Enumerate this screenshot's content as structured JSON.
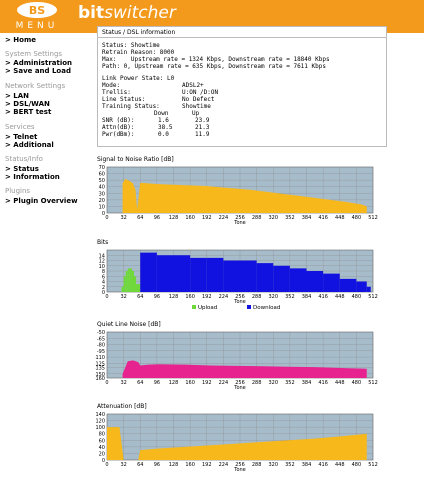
{
  "header": {
    "logo_top": "BS",
    "logo_bottom": "MENU",
    "brand_bold": "bit",
    "brand_italic": "switcher"
  },
  "sidebar": {
    "home": "> Home",
    "system_settings": {
      "heading": "System Settings",
      "items": [
        "> Administration",
        "> Save and Load"
      ]
    },
    "network_settings": {
      "heading": "Network Settings",
      "items": [
        "> LAN",
        "> DSL/WAN",
        "> BERT test"
      ]
    },
    "services": {
      "heading": "Services",
      "items": [
        "> Telnet",
        "> Additional"
      ]
    },
    "status_info": {
      "heading": "Status/Info",
      "items": [
        "> Status",
        "> Information"
      ]
    },
    "plugins": {
      "heading": "Plugins",
      "items": [
        "> Plugin Overview"
      ]
    }
  },
  "dsl": {
    "title": "Status / DSL information",
    "status_line": "Status: Showtime",
    "retrain_line": "Retrain Reason: 8000",
    "max_line": "Max:    Upstream rate = 1324 Kbps, Downstream rate = 18840 Kbps",
    "path_line": "Path: 0, Upstream rate = 635 Kbps, Downstream rate = 7611 Kbps",
    "link_power": "Link Power State: L0",
    "mode_label": "Mode:",
    "mode_value": "ADSL2+",
    "trellis_label": "Trellis:",
    "trellis_value": "U:ON /D:ON",
    "line_status_label": "Line Status:",
    "line_status_value": "No Defect",
    "training_label": "Training Status:",
    "training_value": "Showtime",
    "col_down": "Down",
    "col_up": "Up",
    "snr_label": "SNR (dB):",
    "snr_down": "1.6",
    "snr_up": "23.9",
    "attn_label": "Attn(dB):",
    "attn_down": "38.5",
    "attn_up": "21.3",
    "pwr_label": "Pwr(dBm):",
    "pwr_down": "0.0",
    "pwr_up": "11.9"
  },
  "colors": {
    "orange": "#f39a1c",
    "plot_bg": "#a7bccb",
    "snr": "#f6b81a",
    "bits_up": "#6fd93a",
    "bits_down": "#1212e0",
    "qln": "#e6238f",
    "atten": "#f6b81a"
  },
  "chart_data": [
    {
      "type": "area",
      "title": "Signal to Noise Ratio [dB]",
      "xlabel": "Tone",
      "xlim": [
        0,
        512
      ],
      "ylim": [
        0,
        70
      ],
      "yticks": [
        0,
        10,
        20,
        30,
        40,
        50,
        60,
        70
      ],
      "xticks": [
        0,
        32,
        64,
        96,
        128,
        160,
        192,
        224,
        256,
        288,
        320,
        352,
        384,
        416,
        448,
        480,
        512
      ],
      "series": [
        {
          "x": [
            30,
            35,
            40,
            45,
            50,
            55,
            58,
            64,
            80,
            100,
            130,
            160,
            190,
            220,
            250,
            280,
            310,
            340,
            370,
            400,
            430,
            460,
            490,
            500
          ],
          "y": [
            45,
            52,
            50,
            48,
            45,
            35,
            5,
            46,
            45,
            44,
            43,
            42,
            41,
            39,
            37,
            35,
            32,
            29,
            26,
            23,
            20,
            17,
            13,
            10
          ]
        }
      ]
    },
    {
      "type": "bar",
      "title": "Bits",
      "xlabel": "Tone",
      "xlim": [
        0,
        512
      ],
      "ylim": [
        0,
        16
      ],
      "yticks": [
        0,
        2,
        4,
        6,
        8,
        10,
        12,
        14
      ],
      "xticks": [
        0,
        32,
        64,
        96,
        128,
        160,
        192,
        224,
        256,
        288,
        320,
        352,
        384,
        416,
        448,
        480,
        512
      ],
      "legend": [
        "Upload",
        "Download"
      ],
      "legend_position": "bottom",
      "series": [
        {
          "name": "Upload",
          "x": [
            28,
            32,
            36,
            40,
            44,
            48,
            52,
            56
          ],
          "y": [
            2,
            6,
            8,
            9,
            9,
            8,
            6,
            3
          ]
        },
        {
          "name": "Download",
          "x": [
            64,
            96,
            128,
            160,
            192,
            224,
            256,
            288,
            320,
            352,
            384,
            416,
            448,
            480,
            500
          ],
          "y": [
            15,
            14,
            14,
            13,
            13,
            12,
            12,
            11,
            10,
            9,
            8,
            7,
            5,
            4,
            2
          ]
        }
      ]
    },
    {
      "type": "area",
      "title": "Quiet Line Noise [dB]",
      "xlabel": "Tone",
      "xlim": [
        0,
        512
      ],
      "ylim": [
        -160,
        -50
      ],
      "yticks": [
        -50,
        -65,
        -80,
        -95,
        -110,
        -125,
        -135,
        -150,
        -160
      ],
      "xticks": [
        0,
        32,
        64,
        96,
        128,
        160,
        192,
        224,
        256,
        288,
        320,
        352,
        384,
        416,
        448,
        480,
        512
      ],
      "series": [
        {
          "x": [
            30,
            40,
            50,
            60,
            64,
            80,
            100,
            150,
            200,
            250,
            300,
            350,
            400,
            450,
            500
          ],
          "y": [
            -150,
            -120,
            -118,
            -122,
            -130,
            -128,
            -127,
            -128,
            -130,
            -131,
            -132,
            -133,
            -134,
            -136,
            -138
          ]
        }
      ]
    },
    {
      "type": "area",
      "title": "Attenuation [dB]",
      "xlabel": "Tone",
      "xlim": [
        0,
        512
      ],
      "ylim": [
        0,
        140
      ],
      "yticks": [
        0,
        20,
        40,
        60,
        80,
        100,
        120,
        140
      ],
      "xticks": [
        0,
        32,
        64,
        96,
        128,
        160,
        192,
        224,
        256,
        288,
        320,
        352,
        384,
        416,
        448,
        480,
        512
      ],
      "series": [
        {
          "x": [
            0,
            24,
            32,
            60,
            64,
            100,
            150,
            200,
            250,
            300,
            350,
            400,
            450,
            500
          ],
          "y": [
            100,
            100,
            0,
            0,
            30,
            35,
            40,
            45,
            50,
            55,
            60,
            65,
            72,
            80
          ]
        }
      ]
    }
  ]
}
